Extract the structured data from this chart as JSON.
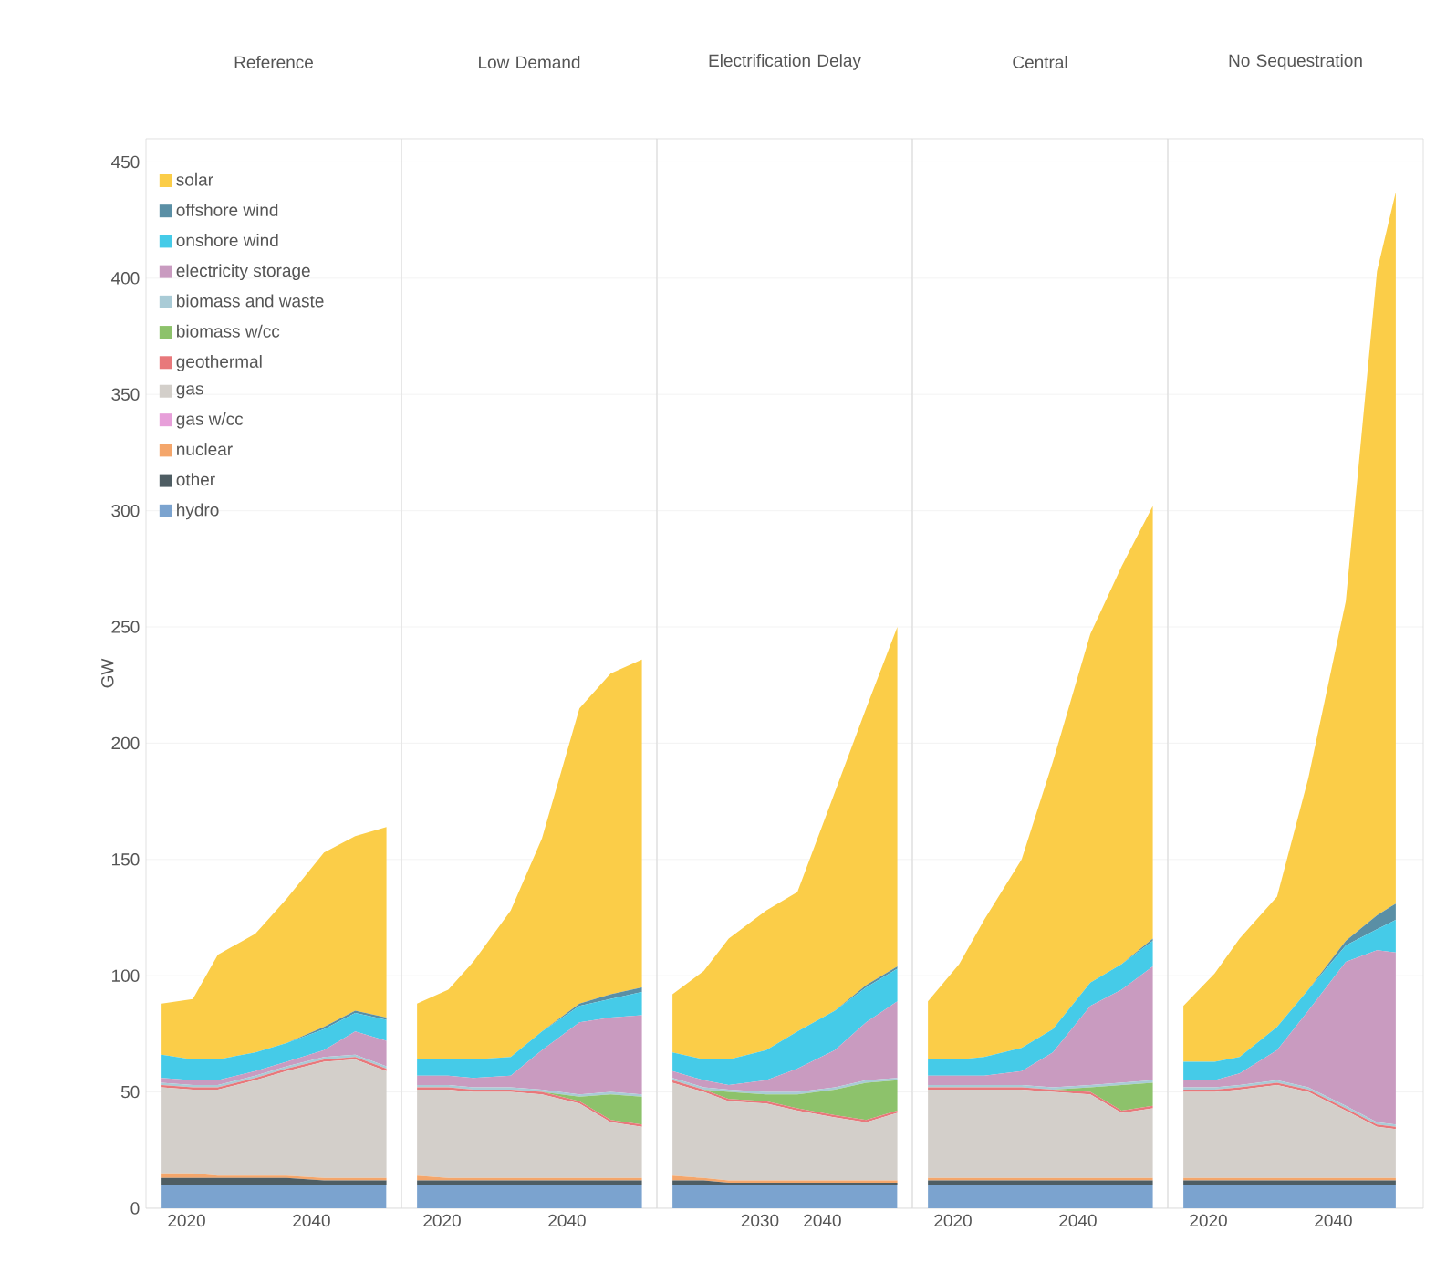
{
  "chart_data": [
    {
      "type": "area",
      "title": "Reference",
      "ylabel": "GW",
      "stacked": true,
      "grid": "y",
      "legend": "top left",
      "xlim": [
        2013.5,
        2054.4
      ],
      "xticks": [
        2020,
        2040
      ],
      "ylim": [
        0,
        460
      ],
      "yticks": [
        0,
        50,
        100,
        150,
        200,
        250,
        300,
        350,
        400,
        450
      ],
      "x": [
        2016,
        2021,
        2025,
        2031,
        2036,
        2042,
        2047,
        2052
      ],
      "series": [
        {
          "name": "hydro",
          "color": "#7ba3cf",
          "values": [
            10,
            10,
            10,
            10,
            10,
            10,
            10,
            10
          ]
        },
        {
          "name": "other",
          "color": "#4e5d63",
          "values": [
            3,
            3,
            3,
            3,
            3,
            2,
            2,
            2
          ]
        },
        {
          "name": "nuclear",
          "color": "#f4a66b",
          "values": [
            2,
            2,
            1,
            1,
            1,
            1,
            1,
            1
          ]
        },
        {
          "name": "gas w/cc",
          "color": "#e79fd9",
          "values": [
            null,
            null,
            null,
            null,
            null,
            null,
            null,
            null
          ]
        },
        {
          "name": "gas",
          "color": "#d3cfca",
          "values": [
            37,
            36,
            37,
            41,
            45,
            50,
            51,
            46
          ]
        },
        {
          "name": "geothermal",
          "color": "#e8787b",
          "values": [
            1,
            1,
            1,
            1,
            1,
            1,
            1,
            1
          ]
        },
        {
          "name": "biomass w/cc",
          "color": "#8dc26b",
          "values": [
            null,
            null,
            null,
            null,
            null,
            null,
            null,
            null
          ]
        },
        {
          "name": "biomass and waste",
          "color": "#a9cbd6",
          "values": [
            1,
            1,
            1,
            1,
            1,
            1,
            1,
            1
          ]
        },
        {
          "name": "electricity storage",
          "color": "#c99bc0",
          "values": [
            2,
            2,
            2,
            2,
            2,
            3,
            10,
            11
          ]
        },
        {
          "name": "onshore wind",
          "color": "#45cbe8",
          "values": [
            10,
            9,
            9,
            8,
            8,
            9,
            8,
            9
          ]
        },
        {
          "name": "offshore wind",
          "color": "#5a8fa5",
          "values": [
            0,
            0,
            0,
            0,
            0,
            1,
            1,
            1
          ]
        },
        {
          "name": "solar",
          "color": "#fbcd48",
          "values": [
            22,
            26,
            45,
            51,
            62,
            75,
            75,
            82
          ]
        }
      ]
    },
    {
      "type": "area",
      "title": "Low Demand",
      "stacked": true,
      "grid": "y",
      "tick_labels": "x",
      "xlim": [
        2013.5,
        2054.4
      ],
      "xticks": [
        2020,
        2040
      ],
      "ylim": [
        0,
        460
      ],
      "yticks": [
        0,
        50,
        100,
        150,
        200,
        250,
        300,
        350,
        400,
        450
      ],
      "x": [
        2016,
        2021,
        2025,
        2031,
        2036,
        2042,
        2047,
        2052
      ],
      "series": [
        {
          "color": "#7ba3cf",
          "values": [
            10,
            10,
            10,
            10,
            10,
            10,
            10,
            10
          ]
        },
        {
          "color": "#4e5d63",
          "values": [
            2,
            2,
            2,
            2,
            2,
            2,
            2,
            2
          ]
        },
        {
          "color": "#f4a66b",
          "values": [
            2,
            1,
            1,
            1,
            1,
            1,
            1,
            1
          ]
        },
        {
          "color": "#d3cfca",
          "values": [
            37,
            38,
            37,
            37,
            36,
            32,
            24,
            22
          ]
        },
        {
          "color": "#e8787b",
          "values": [
            1,
            1,
            1,
            1,
            1,
            1,
            1,
            1
          ]
        },
        {
          "color": "#8dc26b",
          "values": [
            0,
            0,
            0,
            0,
            0,
            2,
            11,
            12
          ]
        },
        {
          "color": "#a9cbd6",
          "values": [
            1,
            1,
            1,
            1,
            1,
            1,
            1,
            1
          ]
        },
        {
          "color": "#c99bc0",
          "values": [
            4,
            4,
            4,
            5,
            17,
            31,
            32,
            34
          ]
        },
        {
          "color": "#45cbe8",
          "values": [
            7,
            7,
            8,
            8,
            8,
            7,
            8,
            10
          ]
        },
        {
          "color": "#5a8fa5",
          "values": [
            0,
            0,
            0,
            0,
            0,
            1,
            2,
            2
          ]
        },
        {
          "color": "#fbcd48",
          "values": [
            24,
            30,
            42,
            63,
            83,
            127,
            138,
            141
          ]
        }
      ]
    },
    {
      "type": "area",
      "title": "Electrification Delay",
      "stacked": true,
      "grid": "y",
      "tick_labels": "x",
      "xlim": [
        2013.5,
        2054.4
      ],
      "xticks": [
        2030,
        2040
      ],
      "ylim": [
        0,
        460
      ],
      "yticks": [
        0,
        50,
        100,
        150,
        200,
        250,
        300,
        350,
        400,
        450
      ],
      "x": [
        2016,
        2021,
        2025,
        2031,
        2036,
        2042,
        2047,
        2052
      ],
      "series": [
        {
          "color": "#7ba3cf",
          "values": [
            10,
            10,
            10,
            10,
            10,
            10,
            10,
            10
          ]
        },
        {
          "color": "#4e5d63",
          "values": [
            2,
            2,
            1,
            1,
            1,
            1,
            1,
            1
          ]
        },
        {
          "color": "#f4a66b",
          "values": [
            2,
            1,
            1,
            1,
            1,
            1,
            1,
            1
          ]
        },
        {
          "color": "#d3cfca",
          "values": [
            40,
            37,
            34,
            33,
            30,
            27,
            25,
            29
          ]
        },
        {
          "color": "#e8787b",
          "values": [
            1,
            1,
            1,
            1,
            1,
            1,
            1,
            1
          ]
        },
        {
          "color": "#8dc26b",
          "values": [
            0,
            0,
            3,
            3,
            6,
            11,
            16,
            13
          ]
        },
        {
          "color": "#a9cbd6",
          "values": [
            1,
            1,
            1,
            1,
            1,
            1,
            1,
            1
          ]
        },
        {
          "color": "#c99bc0",
          "values": [
            3,
            3,
            2,
            5,
            10,
            16,
            25,
            33
          ]
        },
        {
          "color": "#45cbe8",
          "values": [
            8,
            9,
            11,
            13,
            16,
            17,
            15,
            14
          ]
        },
        {
          "color": "#5a8fa5",
          "values": [
            0,
            0,
            0,
            0,
            0,
            0,
            1,
            1
          ]
        },
        {
          "color": "#fbcd48",
          "values": [
            25,
            38,
            52,
            60,
            60,
            94,
            119,
            146
          ]
        }
      ]
    },
    {
      "type": "area",
      "title": "Central",
      "stacked": true,
      "grid": "y",
      "tick_labels": "x",
      "xlim": [
        2013.5,
        2054.4
      ],
      "xticks": [
        2020,
        2040
      ],
      "ylim": [
        0,
        460
      ],
      "yticks": [
        0,
        50,
        100,
        150,
        200,
        250,
        300,
        350,
        400,
        450
      ],
      "x": [
        2016,
        2021,
        2025,
        2031,
        2036,
        2042,
        2047,
        2052
      ],
      "series": [
        {
          "color": "#7ba3cf",
          "values": [
            10,
            10,
            10,
            10,
            10,
            10,
            10,
            10
          ]
        },
        {
          "color": "#4e5d63",
          "values": [
            2,
            2,
            2,
            2,
            2,
            2,
            2,
            2
          ]
        },
        {
          "color": "#f4a66b",
          "values": [
            1,
            1,
            1,
            1,
            1,
            1,
            1,
            1
          ]
        },
        {
          "color": "#d3cfca",
          "values": [
            38,
            38,
            38,
            38,
            37,
            36,
            28,
            30
          ]
        },
        {
          "color": "#e8787b",
          "values": [
            1,
            1,
            1,
            1,
            1,
            1,
            1,
            1
          ]
        },
        {
          "color": "#8dc26b",
          "values": [
            0,
            0,
            0,
            0,
            0,
            2,
            11,
            10
          ]
        },
        {
          "color": "#a9cbd6",
          "values": [
            1,
            1,
            1,
            1,
            1,
            1,
            1,
            1
          ]
        },
        {
          "color": "#c99bc0",
          "values": [
            4,
            4,
            4,
            6,
            15,
            34,
            40,
            49
          ]
        },
        {
          "color": "#45cbe8",
          "values": [
            7,
            7,
            8,
            10,
            10,
            10,
            11,
            11
          ]
        },
        {
          "color": "#5a8fa5",
          "values": [
            0,
            0,
            0,
            0,
            0,
            0,
            0,
            1
          ]
        },
        {
          "color": "#fbcd48",
          "values": [
            25,
            41,
            59,
            81,
            115,
            150,
            171,
            186
          ]
        }
      ]
    },
    {
      "type": "area",
      "title": "No Sequestration",
      "stacked": true,
      "grid": "y",
      "tick_labels": "x",
      "xlim": [
        2013.5,
        2054.4
      ],
      "xticks": [
        2020,
        2040
      ],
      "ylim": [
        0,
        460
      ],
      "yticks": [
        0,
        50,
        100,
        150,
        200,
        250,
        300,
        350,
        400,
        450
      ],
      "x": [
        2016,
        2021,
        2025,
        2031,
        2036,
        2042,
        2047,
        2050
      ],
      "series": [
        {
          "color": "#7ba3cf",
          "values": [
            10,
            10,
            10,
            10,
            10,
            10,
            10,
            10
          ]
        },
        {
          "color": "#4e5d63",
          "values": [
            2,
            2,
            2,
            2,
            2,
            2,
            2,
            2
          ]
        },
        {
          "color": "#f4a66b",
          "values": [
            1,
            1,
            1,
            1,
            1,
            1,
            1,
            1
          ]
        },
        {
          "color": "#d3cfca",
          "values": [
            37,
            37,
            38,
            40,
            37,
            29,
            22,
            21
          ]
        },
        {
          "color": "#e8787b",
          "values": [
            1,
            1,
            1,
            1,
            1,
            1,
            1,
            1
          ]
        },
        {
          "color": "#a9cbd6",
          "values": [
            1,
            1,
            1,
            1,
            1,
            1,
            1,
            1
          ]
        },
        {
          "color": "#c99bc0",
          "values": [
            3,
            3,
            5,
            13,
            33,
            62,
            74,
            74
          ]
        },
        {
          "color": "#45cbe8",
          "values": [
            8,
            8,
            7,
            10,
            9,
            7,
            9,
            14
          ]
        },
        {
          "color": "#5a8fa5",
          "values": [
            0,
            0,
            0,
            0,
            0,
            2,
            6,
            7
          ]
        },
        {
          "color": "#fbcd48",
          "values": [
            24,
            38,
            51,
            56,
            91,
            146,
            277,
            306
          ]
        }
      ]
    }
  ]
}
